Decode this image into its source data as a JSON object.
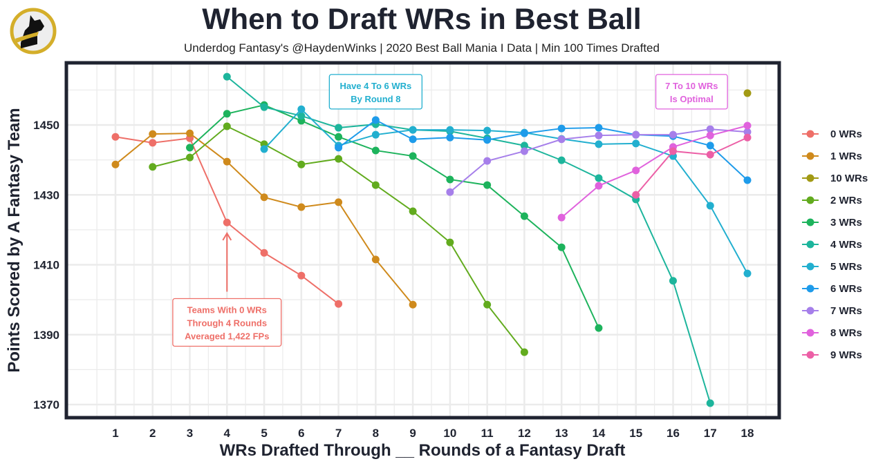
{
  "chart_data": {
    "type": "line",
    "title": "When to Draft WRs in Best Ball",
    "subtitle": "Underdog Fantasy's @HaydenWinks | 2020 Best Ball Mania I Data | Min 100 Times Drafted",
    "xlabel": "WRs Drafted Through __ Rounds of a Fantasy Draft",
    "ylabel": "Points Scored by A Fantasy Team",
    "xlim": [
      0,
      19
    ],
    "ylim": [
      1366,
      1468
    ],
    "x_ticks": [
      1,
      2,
      3,
      4,
      5,
      6,
      7,
      8,
      9,
      10,
      11,
      12,
      13,
      14,
      15,
      16,
      17,
      18
    ],
    "y_ticks": [
      1370,
      1390,
      1410,
      1430,
      1450
    ],
    "grid": true,
    "legend_position": "right",
    "series": [
      {
        "name": "0 WRs",
        "color": "#EE6F68",
        "x": [
          1,
          2,
          3,
          4,
          5,
          6,
          7
        ],
        "y": [
          1446.6,
          1444.9,
          1446.2,
          1422.1,
          1413.4,
          1406.9,
          1398.8
        ]
      },
      {
        "name": "1 WRs",
        "color": "#CF8A1C",
        "x": [
          1,
          2,
          3,
          4,
          5,
          6,
          7,
          8,
          9
        ],
        "y": [
          1438.7,
          1447.4,
          1447.6,
          1439.5,
          1429.3,
          1426.5,
          1427.9,
          1411.5,
          1398.6
        ]
      },
      {
        "name": "10 WRs",
        "color": "#A29A14",
        "x": [
          18
        ],
        "y": [
          1459.1
        ]
      },
      {
        "name": "2 WRs",
        "color": "#62AB1E",
        "x": [
          2,
          3,
          4,
          5,
          6,
          7,
          8,
          9,
          10,
          11,
          12
        ],
        "y": [
          1438.0,
          1440.7,
          1449.6,
          1444.5,
          1438.7,
          1440.3,
          1432.8,
          1425.3,
          1416.4,
          1398.6,
          1385.0
        ]
      },
      {
        "name": "3 WRs",
        "color": "#1DB35C",
        "x": [
          3,
          4,
          5,
          6,
          7,
          8,
          9,
          10,
          11,
          12,
          13,
          14
        ],
        "y": [
          1443.5,
          1453.2,
          1455.7,
          1451.2,
          1446.6,
          1442.7,
          1441.1,
          1434.4,
          1432.8,
          1423.9,
          1415.0,
          1391.9
        ]
      },
      {
        "name": "4 WRs",
        "color": "#1DB59C",
        "x": [
          4,
          5,
          6,
          7,
          8,
          9,
          10,
          11,
          12,
          13,
          14,
          15,
          16,
          17
        ],
        "y": [
          1463.8,
          1455.1,
          1452.6,
          1449.2,
          1450.2,
          1448.6,
          1448.2,
          1446.2,
          1444.1,
          1439.9,
          1434.8,
          1428.7,
          1405.4,
          1370.4
        ]
      },
      {
        "name": "5 WRs",
        "color": "#22AFCF",
        "x": [
          5,
          6,
          7,
          8,
          9,
          10,
          11,
          12,
          13,
          14,
          15,
          16,
          17,
          18
        ],
        "y": [
          1443.1,
          1454.5,
          1444.1,
          1447.2,
          1448.6,
          1448.6,
          1448.4,
          1447.8,
          1446.0,
          1444.5,
          1444.7,
          1441.1,
          1426.9,
          1407.5
        ]
      },
      {
        "name": "6 WRs",
        "color": "#1E9BEA",
        "x": [
          7,
          8,
          9,
          10,
          11,
          12,
          13,
          14,
          15,
          16,
          17,
          18
        ],
        "y": [
          1443.5,
          1451.4,
          1445.9,
          1446.4,
          1445.7,
          1447.6,
          1449.0,
          1449.2,
          1447.2,
          1446.8,
          1444.1,
          1434.2
        ]
      },
      {
        "name": "7 WRs",
        "color": "#A67FEA",
        "x": [
          10,
          11,
          12,
          13,
          14,
          15,
          16,
          17,
          18
        ],
        "y": [
          1430.8,
          1439.7,
          1442.5,
          1445.9,
          1447.0,
          1447.2,
          1447.2,
          1448.8,
          1448.0
        ]
      },
      {
        "name": "8 WRs",
        "color": "#E062DD",
        "x": [
          13,
          14,
          15,
          16,
          17,
          18
        ],
        "y": [
          1423.5,
          1432.6,
          1437.0,
          1443.7,
          1447.0,
          1449.8
        ]
      },
      {
        "name": "9 WRs",
        "color": "#EC5FA6",
        "x": [
          15,
          16,
          17,
          18
        ],
        "y": [
          1430.0,
          1442.5,
          1441.5,
          1446.4
        ]
      }
    ],
    "annotations": [
      {
        "lines": [
          "Have 4 To 6 WRs",
          "By Round 8"
        ],
        "color": "#22AFCF",
        "at_x": 8,
        "at_y": 1459.5
      },
      {
        "lines": [
          "7 To 10 WRs",
          "Is Optimal"
        ],
        "color": "#E062DD",
        "at_x": 16.5,
        "at_y": 1459.5
      },
      {
        "lines": [
          "Teams With 0 WRs",
          "Through 4 Rounds",
          "Averaged 1,422 FPs"
        ],
        "color": "#EE6F68",
        "at_x": 4,
        "at_y": 1393.5,
        "arrow_to": [
          4,
          1419
        ]
      }
    ]
  }
}
